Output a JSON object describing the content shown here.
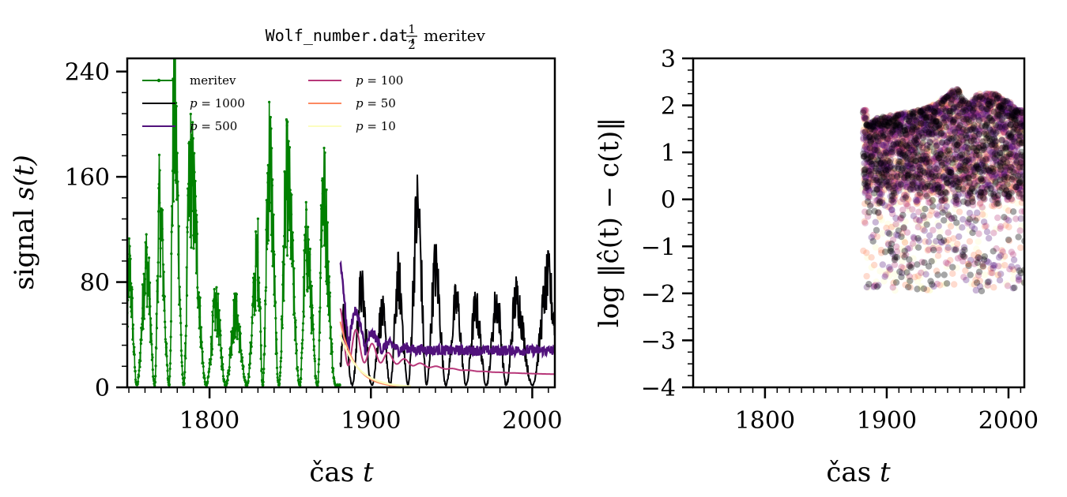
{
  "chart_data": [
    {
      "type": "line",
      "title_mono": "Wolf_number.dat,",
      "title_frac_num": "1",
      "title_frac_den": "2",
      "title_rest": "meritev",
      "xlabel": "čas",
      "xlabel_var": "t",
      "ylabel": "signal",
      "ylabel_var": "s(t)",
      "xlim": [
        1749,
        2014
      ],
      "ylim": [
        0,
        250
      ],
      "xticks": [
        1800,
        1900,
        2000
      ],
      "xtick_labels": [
        "1800",
        "1900",
        "2000"
      ],
      "yticks": [
        0,
        80,
        160,
        240
      ],
      "ytick_labels": [
        "0",
        "80",
        "160",
        "240"
      ],
      "x_minor_step": 10,
      "y_minor_step": 16,
      "grid": false,
      "legend_position": "top-left",
      "legend": [
        {
          "label": "meritev",
          "math": false,
          "color": "#008000",
          "marker": true
        },
        {
          "label": "p = 1000",
          "math": true,
          "color": "#000004"
        },
        {
          "label": "p = 500",
          "math": true,
          "color": "#51127c"
        },
        {
          "label": "p = 100",
          "math": true,
          "color": "#b73779"
        },
        {
          "label": "p = 50",
          "math": true,
          "color": "#fc8961"
        },
        {
          "label": "p = 10",
          "math": true,
          "color": "#fcfdbf"
        }
      ],
      "measured_series": {
        "name": "meritev",
        "color": "#008000",
        "x_start": 1749,
        "x_end": 1881,
        "cycle_peaks": [
          {
            "year": 1750,
            "value": 105
          },
          {
            "year": 1761,
            "value": 110
          },
          {
            "year": 1769,
            "value": 155
          },
          {
            "year": 1778,
            "value": 240
          },
          {
            "year": 1788,
            "value": 190
          },
          {
            "year": 1804,
            "value": 70
          },
          {
            "year": 1816,
            "value": 65
          },
          {
            "year": 1830,
            "value": 115
          },
          {
            "year": 1837,
            "value": 205
          },
          {
            "year": 1848,
            "value": 180
          },
          {
            "year": 1860,
            "value": 125
          },
          {
            "year": 1870,
            "value": 175
          }
        ],
        "cycle_minima": [
          1755,
          1766,
          1775,
          1784,
          1798,
          1810,
          1823,
          1833,
          1843,
          1856,
          1867,
          1878
        ]
      },
      "prediction_series": [
        {
          "name": "p = 1000",
          "color": "#000004",
          "x_start": 1881,
          "x_end": 2014,
          "peaks": [
            {
              "year": 1883,
              "value": 60
            },
            {
              "year": 1894,
              "value": 85
            },
            {
              "year": 1907,
              "value": 65
            },
            {
              "year": 1917,
              "value": 95
            },
            {
              "year": 1929,
              "value": 158
            },
            {
              "year": 1940,
              "value": 105
            },
            {
              "year": 1953,
              "value": 75
            },
            {
              "year": 1965,
              "value": 70
            },
            {
              "year": 1978,
              "value": 75
            },
            {
              "year": 1990,
              "value": 80
            },
            {
              "year": 2010,
              "value": 95
            }
          ],
          "troughs_value": 0
        },
        {
          "name": "p = 500",
          "color": "#51127c",
          "x_start": 1881,
          "x_end": 2014,
          "peak_value": 95,
          "settle_value": 28
        },
        {
          "name": "p = 100",
          "color": "#b73779",
          "x_start": 1881,
          "x_end": 2014,
          "start_value": 60,
          "end_value": 9,
          "oscillation_period": 10
        },
        {
          "name": "p = 50",
          "color": "#fc8961",
          "x_start": 1881,
          "x_end": 1920,
          "start_value": 50,
          "end_value": 0
        },
        {
          "name": "p = 10",
          "color": "#fcfdbf",
          "x_start": 1881,
          "x_end": 1925,
          "start_value": 40,
          "end_value": 0
        }
      ]
    },
    {
      "type": "scatter",
      "xlabel": "čas",
      "xlabel_var": "t",
      "ylabel": "log ‖ĉ(t) − c(t)‖",
      "xlim": [
        1741,
        2013
      ],
      "ylim": [
        -4,
        3
      ],
      "xticks": [
        1800,
        1900,
        2000
      ],
      "xtick_labels": [
        "1800",
        "1900",
        "2000"
      ],
      "yticks": [
        -4,
        -3,
        -2,
        -1,
        0,
        1,
        2,
        3
      ],
      "ytick_labels": [
        "−4",
        "−3",
        "−2",
        "−1",
        "0",
        "1",
        "2",
        "3"
      ],
      "x_minor_step": 10,
      "y_minor_step": 0.25,
      "grid": false,
      "series": [
        {
          "name": "p = 1000",
          "color": "#000004",
          "alpha": 0.35
        },
        {
          "name": "p = 500",
          "color": "#51127c",
          "alpha": 0.3
        },
        {
          "name": "p = 100",
          "color": "#b73779",
          "alpha": 0.3
        },
        {
          "name": "p = 50",
          "color": "#fc8961",
          "alpha": 0.3
        },
        {
          "name": "p = 10",
          "color": "#fcfdbf",
          "alpha": 0.3
        }
      ],
      "point_x_range": [
        1881,
        2013
      ],
      "column_tops": [
        {
          "year": 1884,
          "value": 1.6
        },
        {
          "year": 1895,
          "value": 1.75
        },
        {
          "year": 1906,
          "value": 1.8
        },
        {
          "year": 1917,
          "value": 1.85
        },
        {
          "year": 1928,
          "value": 1.9
        },
        {
          "year": 1937,
          "value": 2.0
        },
        {
          "year": 1947,
          "value": 2.15
        },
        {
          "year": 1957,
          "value": 2.35
        },
        {
          "year": 1967,
          "value": 2.05
        },
        {
          "year": 1977,
          "value": 2.25
        },
        {
          "year": 1988,
          "value": 2.25
        },
        {
          "year": 1998,
          "value": 2.1
        },
        {
          "year": 2008,
          "value": 1.9
        }
      ],
      "dense_band": [
        0.2,
        2.2
      ],
      "outlier_min": -1.95
    }
  ]
}
